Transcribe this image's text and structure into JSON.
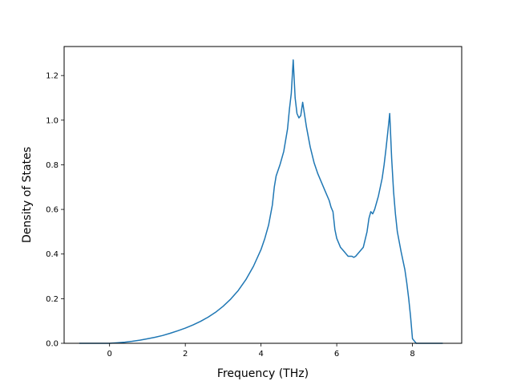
{
  "chart_data": {
    "type": "line",
    "title": "",
    "xlabel": "Frequency (THz)",
    "ylabel": "Density of States",
    "xlim": [
      -1.2,
      9.3
    ],
    "ylim": [
      0.0,
      1.33
    ],
    "xticks": [
      0,
      2,
      4,
      6,
      8
    ],
    "yticks": [
      0.0,
      0.2,
      0.4,
      0.6,
      0.8,
      1.0,
      1.2
    ],
    "grid": false,
    "legend": "none",
    "series": [
      {
        "color": "#1f77b4",
        "x": [
          -0.8,
          -0.6,
          -0.4,
          -0.2,
          0.0,
          0.2,
          0.4,
          0.6,
          0.8,
          1.0,
          1.2,
          1.4,
          1.6,
          1.8,
          2.0,
          2.2,
          2.4,
          2.6,
          2.8,
          3.0,
          3.2,
          3.4,
          3.6,
          3.8,
          4.0,
          4.1,
          4.2,
          4.3,
          4.35,
          4.4,
          4.5,
          4.6,
          4.7,
          4.75,
          4.8,
          4.85,
          4.9,
          4.95,
          5.0,
          5.05,
          5.1,
          5.2,
          5.3,
          5.4,
          5.5,
          5.6,
          5.7,
          5.8,
          5.85,
          5.9,
          5.95,
          6.0,
          6.1,
          6.2,
          6.25,
          6.3,
          6.4,
          6.45,
          6.5,
          6.6,
          6.7,
          6.8,
          6.85,
          6.9,
          6.95,
          7.0,
          7.1,
          7.2,
          7.25,
          7.3,
          7.35,
          7.4,
          7.45,
          7.5,
          7.55,
          7.6,
          7.7,
          7.8,
          7.85,
          7.9,
          7.95,
          8.0,
          8.1,
          8.3,
          8.8
        ],
        "y": [
          0.0,
          0.0,
          0.0,
          0.0,
          0.0,
          0.002,
          0.005,
          0.009,
          0.014,
          0.02,
          0.027,
          0.035,
          0.045,
          0.056,
          0.068,
          0.082,
          0.098,
          0.117,
          0.139,
          0.166,
          0.198,
          0.237,
          0.285,
          0.345,
          0.42,
          0.47,
          0.53,
          0.62,
          0.7,
          0.75,
          0.8,
          0.86,
          0.96,
          1.05,
          1.12,
          1.27,
          1.1,
          1.03,
          1.01,
          1.02,
          1.08,
          0.97,
          0.88,
          0.81,
          0.76,
          0.72,
          0.68,
          0.64,
          0.61,
          0.59,
          0.51,
          0.47,
          0.43,
          0.41,
          0.4,
          0.39,
          0.39,
          0.385,
          0.39,
          0.41,
          0.43,
          0.5,
          0.56,
          0.59,
          0.58,
          0.6,
          0.66,
          0.74,
          0.8,
          0.87,
          0.95,
          1.03,
          0.83,
          0.68,
          0.58,
          0.5,
          0.41,
          0.33,
          0.27,
          0.2,
          0.12,
          0.02,
          0.0,
          0.0,
          0.0
        ]
      }
    ]
  }
}
